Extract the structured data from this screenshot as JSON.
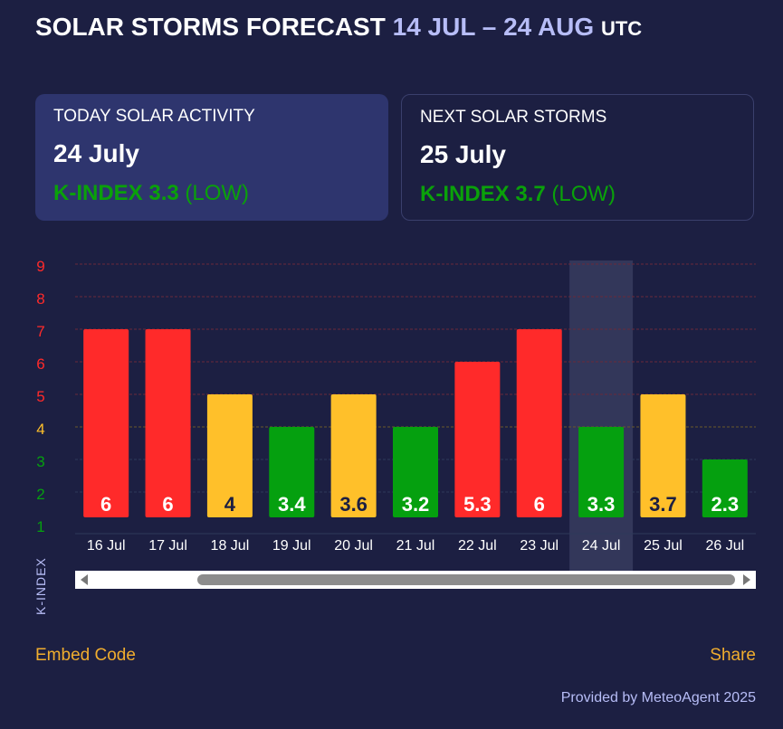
{
  "header": {
    "title_main": "SOLAR STORMS FORECAST",
    "title_range": "14 JUL – 24 AUG",
    "title_tz": "UTC"
  },
  "today": {
    "label": "TODAY SOLAR ACTIVITY",
    "date": "24 July",
    "kindex_label": "K-INDEX 3.3",
    "level": "(LOW)"
  },
  "next": {
    "label": "NEXT SOLAR STORMS",
    "date": "25 July",
    "kindex_label": "K-INDEX 3.7",
    "level": "(LOW)"
  },
  "chart_data": {
    "type": "bar",
    "categories": [
      "16 Jul",
      "17 Jul",
      "18 Jul",
      "19 Jul",
      "20 Jul",
      "21 Jul",
      "22 Jul",
      "23 Jul",
      "24 Jul",
      "25 Jul",
      "26 Jul"
    ],
    "values": [
      6,
      6,
      4,
      3.4,
      3.6,
      3.2,
      5.3,
      6,
      3.3,
      3.7,
      2.3
    ],
    "bar_levels": [
      7,
      7,
      5,
      4,
      5,
      4,
      6,
      7,
      4,
      5,
      3
    ],
    "bar_colors": [
      "#ff2a2a",
      "#ff2a2a",
      "#ffc02a",
      "#05a00f",
      "#ffc02a",
      "#05a00f",
      "#ff2a2a",
      "#ff2a2a",
      "#05a00f",
      "#ffc02a",
      "#05a00f"
    ],
    "label_colors": [
      "#ffffff",
      "#ffffff",
      "#1c1f42",
      "#ffffff",
      "#1c1f42",
      "#ffffff",
      "#ffffff",
      "#ffffff",
      "#ffffff",
      "#1c1f42",
      "#ffffff"
    ],
    "highlight_category": "24 Jul",
    "ylabel": "K-INDEX",
    "yticks": [
      1,
      2,
      3,
      4,
      5,
      6,
      7,
      8,
      9
    ],
    "ytick_colors": [
      "#05a00f",
      "#05a00f",
      "#05a00f",
      "#ffc02a",
      "#ff2a2a",
      "#ff2a2a",
      "#ff2a2a",
      "#ff2a2a",
      "#ff2a2a"
    ],
    "ylim": [
      0.7,
      9.3
    ],
    "grid": true
  },
  "footer": {
    "embed_label": "Embed Code",
    "share_label": "Share",
    "provided_by": "Provided by MeteoAgent 2025"
  },
  "colors": {
    "background": "#1c1f42",
    "card_active": "#2e356e",
    "accent_link": "#f0ad2e",
    "range_text": "#b7bdf7",
    "low_green": "#0aa10a"
  }
}
